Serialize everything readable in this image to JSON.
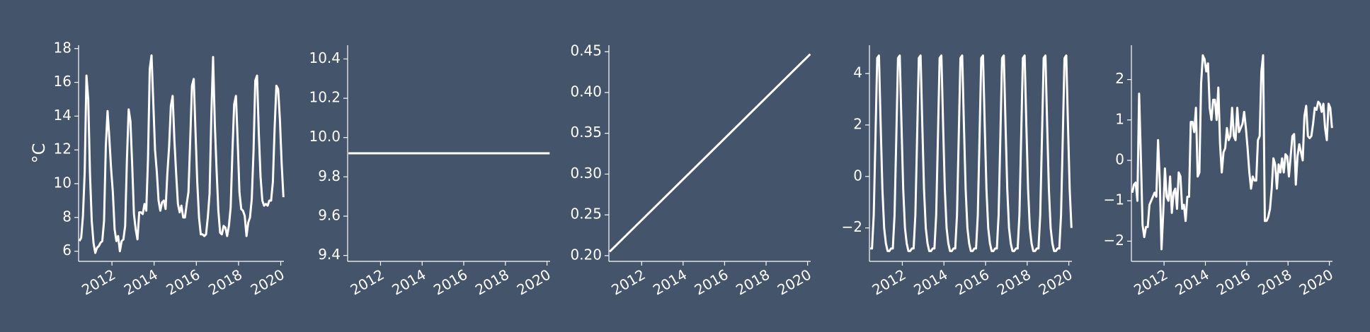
{
  "chart_data": [
    {
      "type": "line",
      "ylabel": "°C",
      "color": "#ffffff",
      "xlim": [
        2010.42,
        2020.15
      ],
      "xticks": [
        2012,
        2014,
        2016,
        2018,
        2020
      ],
      "ylim": [
        5.4,
        18.2
      ],
      "yticks": [
        6,
        8,
        10,
        12,
        14,
        16,
        18
      ],
      "x": [
        2010.46,
        2010.543,
        2010.627,
        2010.71,
        2010.793,
        2010.877,
        2010.96,
        2011.043,
        2011.127,
        2011.21,
        2011.293,
        2011.377,
        2011.46,
        2011.543,
        2011.627,
        2011.71,
        2011.793,
        2011.877,
        2011.96,
        2012.043,
        2012.127,
        2012.21,
        2012.293,
        2012.377,
        2012.46,
        2012.543,
        2012.627,
        2012.71,
        2012.793,
        2012.877,
        2012.96,
        2013.043,
        2013.127,
        2013.21,
        2013.293,
        2013.377,
        2013.46,
        2013.543,
        2013.627,
        2013.71,
        2013.793,
        2013.877,
        2013.96,
        2014.043,
        2014.127,
        2014.21,
        2014.293,
        2014.377,
        2014.46,
        2014.543,
        2014.627,
        2014.71,
        2014.793,
        2014.877,
        2014.96,
        2015.043,
        2015.127,
        2015.21,
        2015.293,
        2015.377,
        2015.46,
        2015.543,
        2015.627,
        2015.71,
        2015.793,
        2015.877,
        2015.96,
        2016.043,
        2016.127,
        2016.21,
        2016.293,
        2016.377,
        2016.46,
        2016.543,
        2016.627,
        2016.71,
        2016.793,
        2016.877,
        2016.96,
        2017.043,
        2017.127,
        2017.21,
        2017.293,
        2017.377,
        2017.46,
        2017.543,
        2017.627,
        2017.71,
        2017.793,
        2017.877,
        2017.96,
        2018.043,
        2018.127,
        2018.21,
        2018.293,
        2018.377,
        2018.46,
        2018.543,
        2018.627,
        2018.71,
        2018.793,
        2018.877,
        2018.96,
        2019.043,
        2019.127,
        2019.21,
        2019.293,
        2019.377,
        2019.46,
        2019.543,
        2019.627,
        2019.71,
        2019.793,
        2019.877,
        2019.96,
        2020.043,
        2020.127
      ],
      "values": [
        6.6,
        6.8,
        8.1,
        10.7,
        16.4,
        15.0,
        10.6,
        7.8,
        6.5,
        5.9,
        6.2,
        6.3,
        6.5,
        6.6,
        7.8,
        12.2,
        14.3,
        12.7,
        10.9,
        9.5,
        7.3,
        6.6,
        6.9,
        6.0,
        6.6,
        6.7,
        7.5,
        11.4,
        14.4,
        13.7,
        11.1,
        8.2,
        7.3,
        6.7,
        8.3,
        8.3,
        8.2,
        8.8,
        8.4,
        11.5,
        16.8,
        17.6,
        14.8,
        12.0,
        10.7,
        9.0,
        8.4,
        8.9,
        9.0,
        8.5,
        10.6,
        12.2,
        14.6,
        15.2,
        12.6,
        10.6,
        8.8,
        8.3,
        8.7,
        8.0,
        8.0,
        8.8,
        9.5,
        12.6,
        15.8,
        16.2,
        13.1,
        10.1,
        8.0,
        7.0,
        7.0,
        6.9,
        7.0,
        8.0,
        9.4,
        14.0,
        17.5,
        13.5,
        10.8,
        8.4,
        7.1,
        7.0,
        7.5,
        7.4,
        6.9,
        7.5,
        8.6,
        11.9,
        14.7,
        15.2,
        12.5,
        9.5,
        8.5,
        8.4,
        8.1,
        6.9,
        7.7,
        8.0,
        9.1,
        11.9,
        16.1,
        16.4,
        13.0,
        10.4,
        9.0,
        8.7,
        8.8,
        8.7,
        9.0,
        9.0,
        10.1,
        13.3,
        15.8,
        15.6,
        13.8,
        11.2,
        9.2
      ]
    },
    {
      "type": "line",
      "color": "#ffffff",
      "xlim": [
        2010.42,
        2020.15
      ],
      "xticks": [
        2012,
        2014,
        2016,
        2018,
        2020
      ],
      "ylim": [
        9.37,
        10.47
      ],
      "yticks": [
        9.4,
        9.6,
        9.8,
        {
          "value": 10,
          "label": "10.0"
        },
        10.2,
        10.4
      ],
      "x": [
        2010.46,
        2020.127
      ],
      "values": [
        9.92,
        9.92
      ]
    },
    {
      "type": "line",
      "color": "#ffffff",
      "xlim": [
        2010.42,
        2020.15
      ],
      "xticks": [
        2012,
        2014,
        2016,
        2018,
        2020
      ],
      "ylim": [
        0.193,
        0.458
      ],
      "yticks": [
        {
          "value": 0.2,
          "label": "0.20"
        },
        0.25,
        {
          "value": 0.3,
          "label": "0.30"
        },
        0.35,
        {
          "value": 0.4,
          "label": "0.40"
        },
        0.45
      ],
      "x": [
        2010.46,
        2020.127
      ],
      "values": [
        0.205,
        0.447
      ]
    },
    {
      "type": "line",
      "color": "#ffffff",
      "xlim": [
        2010.42,
        2020.15
      ],
      "xticks": [
        2012,
        2014,
        2016,
        2018,
        2020
      ],
      "ylim": [
        -3.3,
        5.1
      ],
      "yticks": [
        {
          "value": -2,
          "label": "−2"
        },
        0,
        2,
        4
      ],
      "x": [
        2010.46,
        2010.543,
        2010.627,
        2010.71,
        2010.793,
        2010.877,
        2010.96,
        2011.043,
        2011.127,
        2011.21,
        2011.293,
        2011.377,
        2011.46,
        2011.543,
        2011.627,
        2011.71,
        2011.793,
        2011.877,
        2011.96,
        2012.043,
        2012.127,
        2012.21,
        2012.293,
        2012.377,
        2012.46,
        2012.543,
        2012.627,
        2012.71,
        2012.793,
        2012.877,
        2012.96,
        2013.043,
        2013.127,
        2013.21,
        2013.293,
        2013.377,
        2013.46,
        2013.543,
        2013.627,
        2013.71,
        2013.793,
        2013.877,
        2013.96,
        2014.043,
        2014.127,
        2014.21,
        2014.293,
        2014.377,
        2014.46,
        2014.543,
        2014.627,
        2014.71,
        2014.793,
        2014.877,
        2014.96,
        2015.043,
        2015.127,
        2015.21,
        2015.293,
        2015.377,
        2015.46,
        2015.543,
        2015.627,
        2015.71,
        2015.793,
        2015.877,
        2015.96,
        2016.043,
        2016.127,
        2016.21,
        2016.293,
        2016.377,
        2016.46,
        2016.543,
        2016.627,
        2016.71,
        2016.793,
        2016.877,
        2016.96,
        2017.043,
        2017.127,
        2017.21,
        2017.293,
        2017.377,
        2017.46,
        2017.543,
        2017.627,
        2017.71,
        2017.793,
        2017.877,
        2017.96,
        2018.043,
        2018.127,
        2018.21,
        2018.293,
        2018.377,
        2018.46,
        2018.543,
        2018.627,
        2018.71,
        2018.793,
        2018.877,
        2018.96,
        2019.043,
        2019.127,
        2019.21,
        2019.293,
        2019.377,
        2019.46,
        2019.543,
        2019.627,
        2019.71,
        2019.793,
        2019.877,
        2019.96,
        2020.043,
        2020.127
      ],
      "values": [
        -2.8,
        -2.8,
        -1.5,
        1.5,
        4.6,
        4.7,
        2.0,
        -0.5,
        -2.0,
        -2.6,
        -2.9,
        -2.9,
        -2.8,
        -2.8,
        -1.5,
        1.5,
        4.6,
        4.7,
        2.0,
        -0.5,
        -2.0,
        -2.6,
        -2.9,
        -2.9,
        -2.8,
        -2.8,
        -1.5,
        1.5,
        4.6,
        4.7,
        2.0,
        -0.5,
        -2.0,
        -2.6,
        -2.9,
        -2.9,
        -2.8,
        -2.8,
        -1.5,
        1.5,
        4.6,
        4.7,
        2.0,
        -0.5,
        -2.0,
        -2.6,
        -2.9,
        -2.9,
        -2.8,
        -2.8,
        -1.5,
        1.5,
        4.6,
        4.7,
        2.0,
        -0.5,
        -2.0,
        -2.6,
        -2.9,
        -2.9,
        -2.8,
        -2.8,
        -1.5,
        1.5,
        4.6,
        4.7,
        2.0,
        -0.5,
        -2.0,
        -2.6,
        -2.9,
        -2.9,
        -2.8,
        -2.8,
        -1.5,
        1.5,
        4.6,
        4.7,
        2.0,
        -0.5,
        -2.0,
        -2.6,
        -2.9,
        -2.9,
        -2.8,
        -2.8,
        -1.5,
        1.5,
        4.6,
        4.7,
        2.0,
        -0.5,
        -2.0,
        -2.6,
        -2.9,
        -2.9,
        -2.8,
        -2.8,
        -1.5,
        1.5,
        4.6,
        4.7,
        2.0,
        -0.5,
        -2.0,
        -2.6,
        -2.9,
        -2.9,
        -2.8,
        -2.8,
        -1.5,
        1.5,
        4.6,
        4.7,
        2.0,
        -0.5,
        -2.0
      ]
    },
    {
      "type": "line",
      "color": "#ffffff",
      "xlim": [
        2010.42,
        2020.15
      ],
      "xticks": [
        2012,
        2014,
        2016,
        2018,
        2020
      ],
      "ylim": [
        -2.5,
        2.85
      ],
      "yticks": [
        {
          "value": -2,
          "label": "−2"
        },
        {
          "value": -1,
          "label": "−1"
        },
        0,
        1,
        2
      ],
      "x": [
        2010.46,
        2010.543,
        2010.627,
        2010.71,
        2010.793,
        2010.877,
        2010.96,
        2011.043,
        2011.127,
        2011.21,
        2011.293,
        2011.377,
        2011.46,
        2011.543,
        2011.627,
        2011.71,
        2011.793,
        2011.877,
        2011.96,
        2012.043,
        2012.127,
        2012.21,
        2012.293,
        2012.377,
        2012.46,
        2012.543,
        2012.627,
        2012.71,
        2012.793,
        2012.877,
        2012.96,
        2013.043,
        2013.127,
        2013.21,
        2013.293,
        2013.377,
        2013.46,
        2013.543,
        2013.627,
        2013.71,
        2013.793,
        2013.877,
        2013.96,
        2014.043,
        2014.127,
        2014.21,
        2014.293,
        2014.377,
        2014.46,
        2014.543,
        2014.627,
        2014.71,
        2014.793,
        2014.877,
        2014.96,
        2015.043,
        2015.127,
        2015.21,
        2015.293,
        2015.377,
        2015.46,
        2015.543,
        2015.627,
        2015.71,
        2015.793,
        2015.877,
        2015.96,
        2016.043,
        2016.127,
        2016.21,
        2016.293,
        2016.377,
        2016.46,
        2016.543,
        2016.627,
        2016.71,
        2016.793,
        2016.877,
        2016.96,
        2017.043,
        2017.127,
        2017.21,
        2017.293,
        2017.377,
        2017.46,
        2017.543,
        2017.627,
        2017.71,
        2017.793,
        2017.877,
        2017.96,
        2018.043,
        2018.127,
        2018.21,
        2018.293,
        2018.377,
        2018.46,
        2018.543,
        2018.627,
        2018.71,
        2018.793,
        2018.877,
        2018.96,
        2019.043,
        2019.127,
        2019.21,
        2019.293,
        2019.377,
        2019.46,
        2019.543,
        2019.627,
        2019.71,
        2019.793,
        2019.877,
        2019.96,
        2020.043,
        2020.127
      ],
      "values": [
        -0.8,
        -0.6,
        -0.55,
        -1.0,
        1.65,
        0.1,
        -1.6,
        -1.9,
        -1.65,
        -1.65,
        -1.1,
        -1.0,
        -0.9,
        -0.8,
        -0.9,
        0.5,
        -0.5,
        -2.2,
        -1.3,
        -0.2,
        -0.9,
        -1.0,
        -0.4,
        -1.3,
        -0.8,
        -0.7,
        -1.2,
        -0.3,
        -0.4,
        -1.2,
        -1.1,
        -1.5,
        -0.9,
        -0.9,
        0.95,
        0.95,
        0.7,
        1.3,
        -0.4,
        -0.3,
        1.9,
        2.6,
        2.5,
        2.2,
        2.4,
        1.3,
        1.0,
        1.5,
        1.5,
        1.0,
        1.8,
        0.4,
        -0.3,
        0.2,
        0.3,
        0.8,
        0.5,
        0.6,
        1.3,
        0.6,
        0.5,
        1.3,
        0.7,
        0.8,
        0.9,
        1.2,
        0.8,
        0.3,
        -0.3,
        -0.7,
        -0.4,
        -0.5,
        -0.5,
        0.5,
        0.6,
        2.2,
        2.6,
        -1.5,
        -1.5,
        -1.4,
        -1.2,
        -0.7,
        0.05,
        -0.1,
        -0.7,
        -0.1,
        -0.3,
        0.05,
        -0.3,
        0.15,
        0.1,
        -0.4,
        0.1,
        0.6,
        0.65,
        -0.6,
        0.1,
        0.4,
        0.2,
        0.0,
        1.1,
        1.35,
        0.6,
        0.55,
        0.6,
        0.9,
        1.3,
        1.25,
        1.45,
        1.4,
        1.2,
        1.4,
        0.8,
        0.5,
        1.4,
        1.3,
        0.8
      ]
    }
  ]
}
